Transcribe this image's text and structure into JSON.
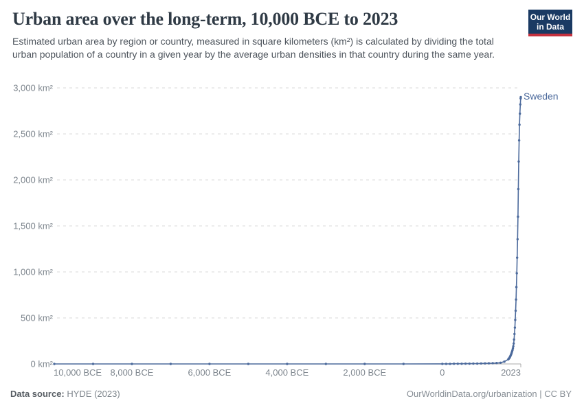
{
  "header": {
    "title": "Urban area over the long-term, 10,000 BCE to 2023",
    "subtitle": "Estimated urban area by region or country, measured in square kilometers (km²) is calculated by dividing the total urban population of a country in a given year by the average urban densities in that country during the same year.",
    "logo": {
      "line1": "Our World",
      "line2": "in Data"
    }
  },
  "footer": {
    "source_label": "Data source:",
    "source_value": "HYDE (2023)",
    "credit": "OurWorldinData.org/urbanization | CC BY"
  },
  "colors": {
    "series_blue": "#4C6A9C",
    "grid": "#d9d9d9",
    "axis": "#a8a8a8",
    "logo_navy": "#1a3a63",
    "logo_red": "#c5313e"
  },
  "chart_data": {
    "type": "line",
    "title": "Urban area over the long-term, 10,000 BCE to 2023",
    "xlabel": "",
    "ylabel": "",
    "grid": "dashed-horizontal",
    "legend_position": "end-of-line-label",
    "xlim": [
      -10000,
      2023
    ],
    "ylim": [
      0,
      3000
    ],
    "x_ticks": [
      {
        "value": -10000,
        "label": "10,000 BCE"
      },
      {
        "value": -8000,
        "label": "8,000 BCE"
      },
      {
        "value": -6000,
        "label": "6,000 BCE"
      },
      {
        "value": -4000,
        "label": "4,000 BCE"
      },
      {
        "value": -2000,
        "label": "2,000 BCE"
      },
      {
        "value": 0,
        "label": "0"
      },
      {
        "value": 2023,
        "label": "2023"
      }
    ],
    "y_ticks": [
      {
        "value": 0,
        "label": "0 km²"
      },
      {
        "value": 500,
        "label": "500 km²"
      },
      {
        "value": 1000,
        "label": "1,000 km²"
      },
      {
        "value": 1500,
        "label": "1,500 km²"
      },
      {
        "value": 2000,
        "label": "2,000 km²"
      },
      {
        "value": 2500,
        "label": "2,500 km²"
      },
      {
        "value": 3000,
        "label": "3,000 km²"
      }
    ],
    "series": [
      {
        "name": "Sweden",
        "color": "#4C6A9C",
        "points": [
          [
            -10000,
            0
          ],
          [
            -9000,
            0
          ],
          [
            -8000,
            0
          ],
          [
            -7000,
            0
          ],
          [
            -6000,
            0
          ],
          [
            -5000,
            0
          ],
          [
            -4000,
            0
          ],
          [
            -3000,
            0
          ],
          [
            -2000,
            0
          ],
          [
            -1000,
            0
          ],
          [
            0,
            1
          ],
          [
            100,
            1
          ],
          [
            200,
            1
          ],
          [
            300,
            2
          ],
          [
            400,
            2
          ],
          [
            500,
            2
          ],
          [
            600,
            3
          ],
          [
            700,
            3
          ],
          [
            800,
            4
          ],
          [
            900,
            4
          ],
          [
            1000,
            5
          ],
          [
            1100,
            6
          ],
          [
            1200,
            7
          ],
          [
            1300,
            8
          ],
          [
            1400,
            10
          ],
          [
            1500,
            13
          ],
          [
            1600,
            25
          ],
          [
            1700,
            50
          ],
          [
            1710,
            55
          ],
          [
            1720,
            60
          ],
          [
            1730,
            66
          ],
          [
            1740,
            73
          ],
          [
            1750,
            81
          ],
          [
            1760,
            90
          ],
          [
            1770,
            100
          ],
          [
            1780,
            111
          ],
          [
            1790,
            123
          ],
          [
            1800,
            137
          ],
          [
            1810,
            152
          ],
          [
            1820,
            170
          ],
          [
            1830,
            192
          ],
          [
            1840,
            222
          ],
          [
            1850,
            265
          ],
          [
            1860,
            325
          ],
          [
            1870,
            395
          ],
          [
            1880,
            478
          ],
          [
            1890,
            578
          ],
          [
            1900,
            700
          ],
          [
            1910,
            835
          ],
          [
            1920,
            985
          ],
          [
            1930,
            1155
          ],
          [
            1940,
            1355
          ],
          [
            1950,
            1600
          ],
          [
            1960,
            1900
          ],
          [
            1970,
            2200
          ],
          [
            1980,
            2430
          ],
          [
            1990,
            2600
          ],
          [
            2000,
            2720
          ],
          [
            2010,
            2820
          ],
          [
            2020,
            2885
          ],
          [
            2023,
            2900
          ]
        ]
      }
    ]
  }
}
